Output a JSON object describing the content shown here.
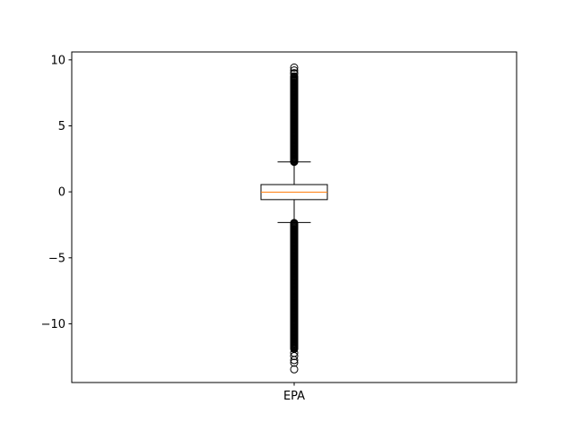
{
  "chart_data": {
    "type": "box",
    "title": "",
    "xlabel": "",
    "ylabel": "",
    "ylim": [
      -14.45,
      10.6
    ],
    "yticks": [
      {
        "value": 10,
        "label": "10"
      },
      {
        "value": 5,
        "label": "5"
      },
      {
        "value": 0,
        "label": "0"
      },
      {
        "value": -5,
        "label": "−5"
      },
      {
        "value": -10,
        "label": "−10"
      }
    ],
    "categories": [
      "EPA"
    ],
    "grid": false,
    "series": [
      {
        "category": "EPA",
        "whisker_low": -2.32,
        "q1": -0.59,
        "median": -0.02,
        "q3": 0.55,
        "whisker_high": 2.27,
        "outliers_high_range": [
          2.27,
          8.8
        ],
        "outliers_low_range": [
          -11.9,
          -2.32
        ],
        "extreme_outliers": [
          9.42,
          9.2,
          9.0,
          8.95,
          -12.2,
          -12.45,
          -12.75,
          -12.95,
          -13.45
        ]
      }
    ],
    "colors": {
      "box": "#000000",
      "median": "#ff7f0e",
      "axes": "#000000",
      "background": "#ffffff"
    }
  }
}
